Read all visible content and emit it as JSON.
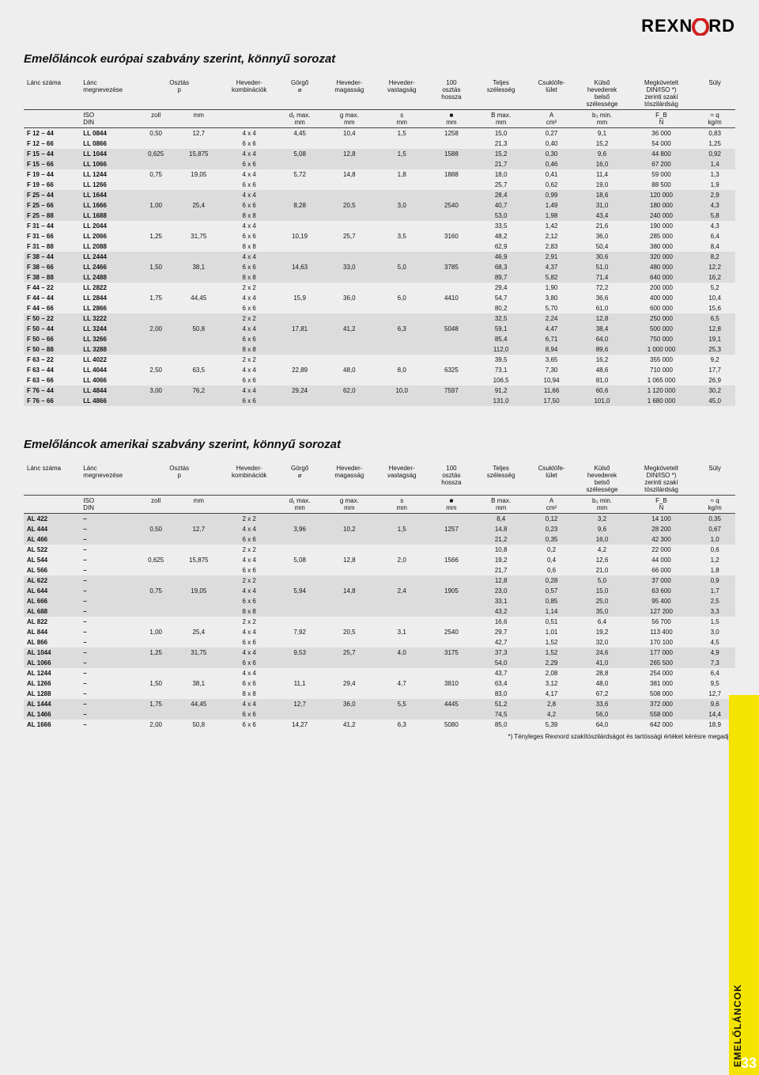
{
  "logo": {
    "left": "REXN",
    "right": "RD",
    "ring_color": "#cf1f1f"
  },
  "title1": "Emelőláncok európai szabvány szerint, könnyű sorozat",
  "title2": "Emelőláncok amerikai szabvány szerint, könnyű sorozat",
  "footnote": "*) Tényleges Rexnord szakítószilárdságot és tartóssági értéket kérésre megadjuk",
  "sidebar": "EMELŐLÁNCOK",
  "pagenum": "33",
  "headers": {
    "c0": "Lánc száma",
    "c1": "Lánc megnevezése",
    "c2": "Osztás",
    "c3": "p",
    "c4": "Heveder-\nkombinációk",
    "c5": "Görgő\n⌀",
    "c6": "Heveder-\nmagasság",
    "c7": "Heveder-\nvastagság",
    "c8": "100\nosztás\nhossza",
    "c9": "Teljes\nszélesség",
    "c10": "Csuklófe-\nlület",
    "c11": "Külső\nhevederek\nbelső\nszélessége",
    "c12": "Megkövetelt\nDIN/ISO *)\nzerinti szakí\ntószilárdság",
    "c13": "Súly",
    "u0": "ISO\nDIN",
    "u1": "zoll",
    "u2": "mm",
    "u3": "",
    "u4": "d₁ max.\nmm",
    "u5": "g max.\nmm",
    "u6": "s\nmm",
    "u7": "■\nmm",
    "u8": "B max.\nmm",
    "u9": "A\ncm²",
    "u10": "b₃ min.\nmm",
    "u11": "F_B\nN",
    "u12": "≈ q\nkg/m"
  },
  "table1": [
    [
      "F 12 – 44",
      "LL 0844",
      "0,50",
      "12,7",
      "4 x 4",
      "4,45",
      "10,4",
      "1,5",
      "1258",
      "15,0",
      "0,27",
      "9,1",
      "36 000",
      "0,83",
      0
    ],
    [
      "F 12 – 66",
      "LL 0866",
      "",
      "",
      "6 x 6",
      "",
      "",
      "",
      "",
      "21,3",
      "0,40",
      "15,2",
      "54 000",
      "1,25",
      0
    ],
    [
      "F 15 – 44",
      "LL 1044",
      "0,625",
      "15,875",
      "4 x 4",
      "5,08",
      "12,8",
      "1,5",
      "1588",
      "15,2",
      "0,30",
      "9,6",
      "44 800",
      "0,92",
      1
    ],
    [
      "F 15 – 66",
      "LL 1066",
      "",
      "",
      "6 x 6",
      "",
      "",
      "",
      "",
      "21,7",
      "0,46",
      "16,0",
      "67 200",
      "1,4",
      1
    ],
    [
      "F 19 – 44",
      "LL 1244",
      "0,75",
      "19,05",
      "4 x 4",
      "5,72",
      "14,8",
      "1,8",
      "1888",
      "18,0",
      "0,41",
      "11,4",
      "59 000",
      "1,3",
      0
    ],
    [
      "F 19 – 66",
      "LL 1266",
      "",
      "",
      "6 x 6",
      "",
      "",
      "",
      "",
      "25,7",
      "0,62",
      "19,0",
      "88 500",
      "1,9",
      0
    ],
    [
      "F 25 – 44",
      "LL 1644",
      "",
      "",
      "4 x 4",
      "",
      "",
      "",
      "",
      "28,4",
      "0,99",
      "18,6",
      "120 000",
      "2,9",
      1
    ],
    [
      "F 25 – 66",
      "LL 1666",
      "1,00",
      "25,4",
      "6 x 6",
      "8,28",
      "20,5",
      "3,0",
      "2540",
      "40,7",
      "1,49",
      "31,0",
      "180 000",
      "4,3",
      1
    ],
    [
      "F 25 – 88",
      "LL 1688",
      "",
      "",
      "8 x 8",
      "",
      "",
      "",
      "",
      "53,0",
      "1,98",
      "43,4",
      "240 000",
      "5,8",
      1
    ],
    [
      "F 31 – 44",
      "LL 2044",
      "",
      "",
      "4 x 4",
      "",
      "",
      "",
      "",
      "33,5",
      "1,42",
      "21,6",
      "190 000",
      "4,3",
      0
    ],
    [
      "F 31 – 66",
      "LL 2066",
      "1,25",
      "31,75",
      "6 x 6",
      "10,19",
      "25,7",
      "3,5",
      "3160",
      "48,2",
      "2,12",
      "36,0",
      "285 000",
      "6,4",
      0
    ],
    [
      "F 31 – 88",
      "LL 2088",
      "",
      "",
      "8 x 8",
      "",
      "",
      "",
      "",
      "62,9",
      "2,83",
      "50,4",
      "380 000",
      "8,4",
      0
    ],
    [
      "F 38 – 44",
      "LL 2444",
      "",
      "",
      "4 x 4",
      "",
      "",
      "",
      "",
      "46,9",
      "2,91",
      "30,6",
      "320 000",
      "8,2",
      1
    ],
    [
      "F 38 – 66",
      "LL 2466",
      "1,50",
      "38,1",
      "6 x 6",
      "14,63",
      "33,0",
      "5,0",
      "3785",
      "68,3",
      "4,37",
      "51,0",
      "480 000",
      "12,2",
      1
    ],
    [
      "F 38 – 88",
      "LL 2488",
      "",
      "",
      "8 x 8",
      "",
      "",
      "",
      "",
      "89,7",
      "5,82",
      "71,4",
      "640 000",
      "16,2",
      1
    ],
    [
      "F 44 – 22",
      "LL 2822",
      "",
      "",
      "2 x 2",
      "",
      "",
      "",
      "",
      "29,4",
      "1,90",
      "72,2",
      "200 000",
      "5,2",
      0
    ],
    [
      "F 44 – 44",
      "LL 2844",
      "1,75",
      "44,45",
      "4 x 4",
      "15,9",
      "36,0",
      "6,0",
      "4410",
      "54,7",
      "3,80",
      "36,6",
      "400 000",
      "10,4",
      0
    ],
    [
      "F 44 – 66",
      "LL 2866",
      "",
      "",
      "6 x 6",
      "",
      "",
      "",
      "",
      "80,2",
      "5,70",
      "61,0",
      "600 000",
      "15,6",
      0
    ],
    [
      "F 50 – 22",
      "LL 3222",
      "",
      "",
      "2 x 2",
      "",
      "",
      "",
      "",
      "32,5",
      "2,24",
      "12,8",
      "250 000",
      "6,5",
      1
    ],
    [
      "F 50 – 44",
      "LL 3244",
      "2,00",
      "50,8",
      "4 x 4",
      "17,81",
      "41,2",
      "6,3",
      "5048",
      "59,1",
      "4,47",
      "38,4",
      "500 000",
      "12,8",
      1
    ],
    [
      "F 50 – 66",
      "LL 3266",
      "",
      "",
      "6 x 6",
      "",
      "",
      "",
      "",
      "85,4",
      "6,71",
      "64,0",
      "750 000",
      "19,1",
      1
    ],
    [
      "F 50 – 88",
      "LL 3288",
      "",
      "",
      "8 x 8",
      "",
      "",
      "",
      "",
      "112,0",
      "8,94",
      "89,6",
      "1 000 000",
      "25,3",
      1
    ],
    [
      "F 63 – 22",
      "LL 4022",
      "",
      "",
      "2 x 2",
      "",
      "",
      "",
      "",
      "39,5",
      "3,65",
      "16,2",
      "355 000",
      "9,2",
      0
    ],
    [
      "F 63 – 44",
      "LL 4044",
      "2,50",
      "63,5",
      "4 x 4",
      "22,89",
      "48,0",
      "8,0",
      "6325",
      "73,1",
      "7,30",
      "48,6",
      "710 000",
      "17,7",
      0
    ],
    [
      "F 63 – 66",
      "LL 4066",
      "",
      "",
      "6 x 6",
      "",
      "",
      "",
      "",
      "106,5",
      "10,94",
      "81,0",
      "1 065 000",
      "26,9",
      0
    ],
    [
      "F 76 – 44",
      "LL 4844",
      "3,00",
      "76,2",
      "4 x 4",
      "29,24",
      "62,0",
      "10,0",
      "7597",
      "91,2",
      "11,66",
      "60,6",
      "1 120 000",
      "30,2",
      1
    ],
    [
      "F 76 – 66",
      "LL 4866",
      "",
      "",
      "6 x 6",
      "",
      "",
      "",
      "",
      "131,0",
      "17,50",
      "101,0",
      "1 680 000",
      "45,0",
      1
    ]
  ],
  "table2": [
    [
      "AL  422",
      "–",
      "",
      "",
      "2 x 2",
      "",
      "",
      "",
      "",
      "8,4",
      "0,12",
      "3,2",
      "14 100",
      "0,35",
      1
    ],
    [
      "AL  444",
      "–",
      "0,50",
      "12,7",
      "4 x 4",
      "3,96",
      "10,2",
      "1,5",
      "1257",
      "14,8",
      "0,23",
      "9,6",
      "28 200",
      "0,67",
      1
    ],
    [
      "AL  466",
      "–",
      "",
      "",
      "6 x 6",
      "",
      "",
      "",
      "",
      "21,2",
      "0,35",
      "16,0",
      "42 300",
      "1,0",
      1
    ],
    [
      "AL  522",
      "–",
      "",
      "",
      "2 x 2",
      "",
      "",
      "",
      "",
      "10,8",
      "0,2",
      "4,2",
      "22 000",
      "0,6",
      0
    ],
    [
      "AL  544",
      "–",
      "0,625",
      "15,875",
      "4 x 4",
      "5,08",
      "12,8",
      "2,0",
      "1566",
      "19,2",
      "0,4",
      "12,6",
      "44 000",
      "1,2",
      0
    ],
    [
      "AL  566",
      "–",
      "",
      "",
      "6 x 6",
      "",
      "",
      "",
      "",
      "21,7",
      "0,6",
      "21,0",
      "66 000",
      "1,8",
      0
    ],
    [
      "AL  622",
      "–",
      "",
      "",
      "2 x 2",
      "",
      "",
      "",
      "",
      "12,8",
      "0,28",
      "5,0",
      "37 000",
      "0,9",
      1
    ],
    [
      "AL  644",
      "–",
      "0,75",
      "19,05",
      "4 x 4",
      "5,94",
      "14,8",
      "2,4",
      "1905",
      "23,0",
      "0,57",
      "15,0",
      "63 600",
      "1,7",
      1
    ],
    [
      "AL  666",
      "–",
      "",
      "",
      "6 x 6",
      "",
      "",
      "",
      "",
      "33,1",
      "0,85",
      "25,0",
      "95 400",
      "2,5",
      1
    ],
    [
      "AL  688",
      "–",
      "",
      "",
      "8 x 8",
      "",
      "",
      "",
      "",
      "43,2",
      "1,14",
      "35,0",
      "127 200",
      "3,3",
      1
    ],
    [
      "AL  822",
      "–",
      "",
      "",
      "2 x 2",
      "",
      "",
      "",
      "",
      "16,6",
      "0,51",
      "6,4",
      "56 700",
      "1,5",
      0
    ],
    [
      "AL  844",
      "–",
      "1,00",
      "25,4",
      "4 x 4",
      "7,92",
      "20,5",
      "3,1",
      "2540",
      "29,7",
      "1,01",
      "19,2",
      "113 400",
      "3,0",
      0
    ],
    [
      "AL  866",
      "–",
      "",
      "",
      "6 x 6",
      "",
      "",
      "",
      "",
      "42,7",
      "1,52",
      "32,0",
      "170 100",
      "4,5",
      0
    ],
    [
      "AL 1044",
      "–",
      "1,25",
      "31,75",
      "4 x 4",
      "9,53",
      "25,7",
      "4,0",
      "3175",
      "37,3",
      "1,52",
      "24,6",
      "177 000",
      "4,9",
      1
    ],
    [
      "AL 1066",
      "–",
      "",
      "",
      "6 x 6",
      "",
      "",
      "",
      "",
      "54,0",
      "2,29",
      "41,0",
      "265 500",
      "7,3",
      1
    ],
    [
      "AL 1244",
      "–",
      "",
      "",
      "4 x 4",
      "",
      "",
      "",
      "",
      "43,7",
      "2,08",
      "28,8",
      "254 000",
      "6,4",
      0
    ],
    [
      "AL 1266",
      "–",
      "1,50",
      "38,1",
      "6 x 6",
      "11,1",
      "29,4",
      "4,7",
      "3810",
      "63,4",
      "3,12",
      "48,0",
      "381 000",
      "9,5",
      0
    ],
    [
      "AL 1288",
      "–",
      "",
      "",
      "8 x 8",
      "",
      "",
      "",
      "",
      "83,0",
      "4,17",
      "67,2",
      "508 000",
      "12,7",
      0
    ],
    [
      "AL 1444",
      "–",
      "1,75",
      "44,45",
      "4 x 4",
      "12,7",
      "36,0",
      "5,5",
      "4445",
      "51,2",
      "2,8",
      "33,6",
      "372 000",
      "9,6",
      1
    ],
    [
      "AL 1466",
      "–",
      "",
      "",
      "6 x 6",
      "",
      "",
      "",
      "",
      "74,5",
      "4,2",
      "56,0",
      "558 000",
      "14,4",
      1
    ],
    [
      "AL 1666",
      "–",
      "2,00",
      "50,8",
      "6 x 6",
      "14,27",
      "41,2",
      "6,3",
      "5080",
      "85,0",
      "5,39",
      "64,0",
      "642 000",
      "18,9",
      0
    ]
  ]
}
